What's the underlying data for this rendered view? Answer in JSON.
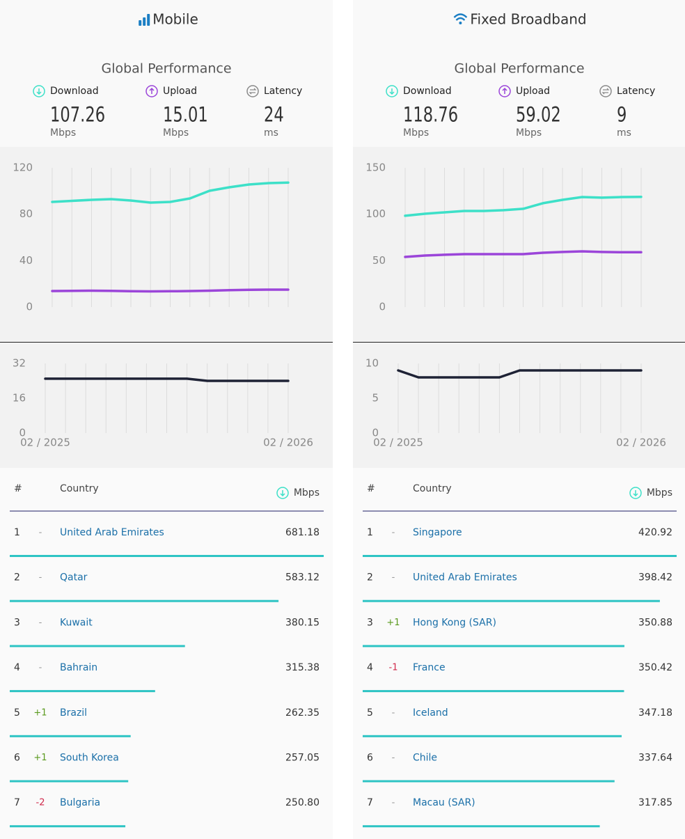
{
  "panels": [
    {
      "title": "Mobile",
      "subtitle": "Global Performance",
      "metrics": [
        {
          "label": "Download",
          "value": 107.26,
          "unit": "Mbps"
        },
        {
          "label": "Upload",
          "value": 15.01,
          "unit": "Mbps"
        },
        {
          "label": "Latency",
          "value": 24,
          "unit": "ms"
        }
      ],
      "speed_chart": {
        "type": "line",
        "ylim": [
          0,
          120
        ],
        "yticks": [
          0,
          40,
          80,
          120
        ],
        "series": [
          {
            "color": "#3de0c8",
            "values": [
              90.6,
              91.5,
              92.4,
              93.0,
              91.8,
              90.0,
              90.6,
              93.6,
              100.2,
              103.2,
              105.6,
              106.8,
              107.26
            ]
          },
          {
            "color": "#9b45d9",
            "values": [
              13.8,
              14.0,
              14.1,
              14.0,
              13.7,
              13.5,
              13.6,
              13.8,
              14.1,
              14.5,
              14.8,
              15.0,
              15.01
            ]
          }
        ]
      },
      "latency_chart": {
        "type": "line",
        "ylim": [
          0,
          32
        ],
        "yticks": [
          0,
          16,
          32
        ],
        "categories": [
          "02 / 2025",
          null,
          null,
          null,
          null,
          null,
          null,
          null,
          null,
          null,
          null,
          null,
          "02 / 2026"
        ],
        "series": [
          {
            "color": "#1e2235",
            "values": [
              25,
              25,
              25,
              25,
              25,
              25,
              25,
              25,
              24,
              24,
              24,
              24,
              24
            ]
          }
        ]
      },
      "table": {
        "columns": [
          "#",
          "Country",
          "Mbps"
        ],
        "bar_color": "#2ec4c4",
        "rows": [
          {
            "rank": 1,
            "change": "-",
            "country": "United Arab Emirates",
            "speed": 681.18
          },
          {
            "rank": 2,
            "change": "-",
            "country": "Qatar",
            "speed": 583.12
          },
          {
            "rank": 3,
            "change": "-",
            "country": "Kuwait",
            "speed": 380.15
          },
          {
            "rank": 4,
            "change": "-",
            "country": "Bahrain",
            "speed": 315.38
          },
          {
            "rank": 5,
            "change": "+1",
            "country": "Brazil",
            "speed": 262.35
          },
          {
            "rank": 6,
            "change": "+1",
            "country": "South Korea",
            "speed": 257.05
          },
          {
            "rank": 7,
            "change": "-2",
            "country": "Bulgaria",
            "speed": {
              "value": 250.8,
              "label": "250.80"
            }
          }
        ]
      }
    },
    {
      "title": "Fixed Broadband",
      "subtitle": "Global Performance",
      "metrics": [
        {
          "label": "Download",
          "value": 118.76,
          "unit": "Mbps"
        },
        {
          "label": "Upload",
          "value": 59.02,
          "unit": "Mbps"
        },
        {
          "label": "Latency",
          "value": 9,
          "unit": "ms"
        }
      ],
      "speed_chart": {
        "type": "line",
        "ylim": [
          0,
          150
        ],
        "yticks": [
          0,
          50,
          100,
          150
        ],
        "series": [
          {
            "color": "#3de0c8",
            "values": [
              98.3,
              100.5,
              102.0,
              103.5,
              103.5,
              104.3,
              105.8,
              111.8,
              115.5,
              118.5,
              117.8,
              118.5,
              118.76
            ]
          },
          {
            "color": "#9b45d9",
            "values": [
              54.0,
              55.5,
              56.3,
              57.0,
              57.0,
              57.0,
              57.0,
              58.5,
              59.3,
              60.0,
              59.3,
              59.02,
              59.02
            ]
          }
        ]
      },
      "latency_chart": {
        "type": "line",
        "ylim": [
          0,
          10
        ],
        "yticks": [
          0,
          5,
          10
        ],
        "categories": [
          "02 / 2025",
          null,
          null,
          null,
          null,
          null,
          null,
          null,
          null,
          null,
          null,
          null,
          "02 / 2026"
        ],
        "series": [
          {
            "color": "#1e2235",
            "values": [
              9,
              8,
              8,
              8,
              8,
              8,
              9,
              9,
              9,
              9,
              9,
              9,
              9
            ]
          }
        ]
      },
      "table": {
        "columns": [
          "#",
          "Country",
          "Mbps"
        ],
        "bar_color": "#2ec4c4",
        "rows": [
          {
            "rank": 1,
            "change": "-",
            "country": "Singapore",
            "speed": 420.92
          },
          {
            "rank": 2,
            "change": "-",
            "country": "United Arab Emirates",
            "speed": 398.42
          },
          {
            "rank": 3,
            "change": "+1",
            "country": "Hong Kong (SAR)",
            "speed": 350.88
          },
          {
            "rank": 4,
            "change": "-1",
            "country": "France",
            "speed": 350.42
          },
          {
            "rank": 5,
            "change": "-",
            "country": "Iceland",
            "speed": 347.18
          },
          {
            "rank": 6,
            "change": "-",
            "country": "Chile",
            "speed": 337.64
          },
          {
            "rank": 7,
            "change": "-",
            "country": "Macau (SAR)",
            "speed": 317.85
          }
        ]
      }
    }
  ]
}
